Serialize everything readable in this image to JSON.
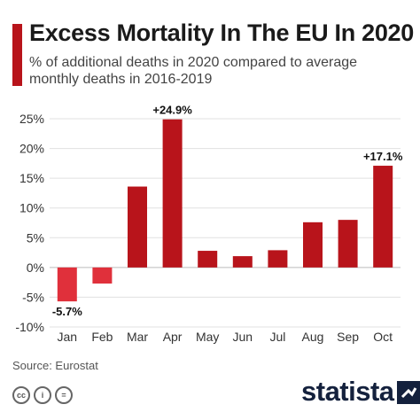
{
  "header": {
    "title": "Excess Mortality In The EU In 2020",
    "subtitle": "% of additional deaths in 2020 compared to average monthly deaths in 2016-2019"
  },
  "chart_data": {
    "type": "bar",
    "title": "Excess Mortality In The EU In 2020",
    "subtitle": "% of additional deaths in 2020 compared to average monthly deaths in 2016-2019",
    "xlabel": "",
    "ylabel": "",
    "categories": [
      "Jan",
      "Feb",
      "Mar",
      "Apr",
      "May",
      "Jun",
      "Jul",
      "Aug",
      "Sep",
      "Oct"
    ],
    "values": [
      -5.7,
      -2.7,
      13.6,
      24.9,
      2.8,
      1.9,
      2.9,
      7.6,
      8.0,
      17.1
    ],
    "data_labels": [
      {
        "category": "Jan",
        "text": "-5.7%"
      },
      {
        "category": "Apr",
        "text": "+24.9%"
      },
      {
        "category": "Oct",
        "text": "+17.1%"
      }
    ],
    "yticks": [
      25,
      20,
      15,
      10,
      5,
      0,
      -5,
      -10
    ],
    "ytick_labels": [
      "25%",
      "20%",
      "15%",
      "10%",
      "5%",
      "0%",
      "-5%",
      "-10%"
    ],
    "ylim": [
      -10,
      25
    ],
    "grid": true,
    "colors": {
      "positive": "#b8141b",
      "negative": "#e0303b"
    }
  },
  "footer": {
    "source": "Source: Eurostat",
    "license_icons": [
      "cc",
      "by",
      "nd"
    ],
    "license_icon_text": [
      "cc",
      "i",
      "="
    ],
    "logo": "statista"
  }
}
